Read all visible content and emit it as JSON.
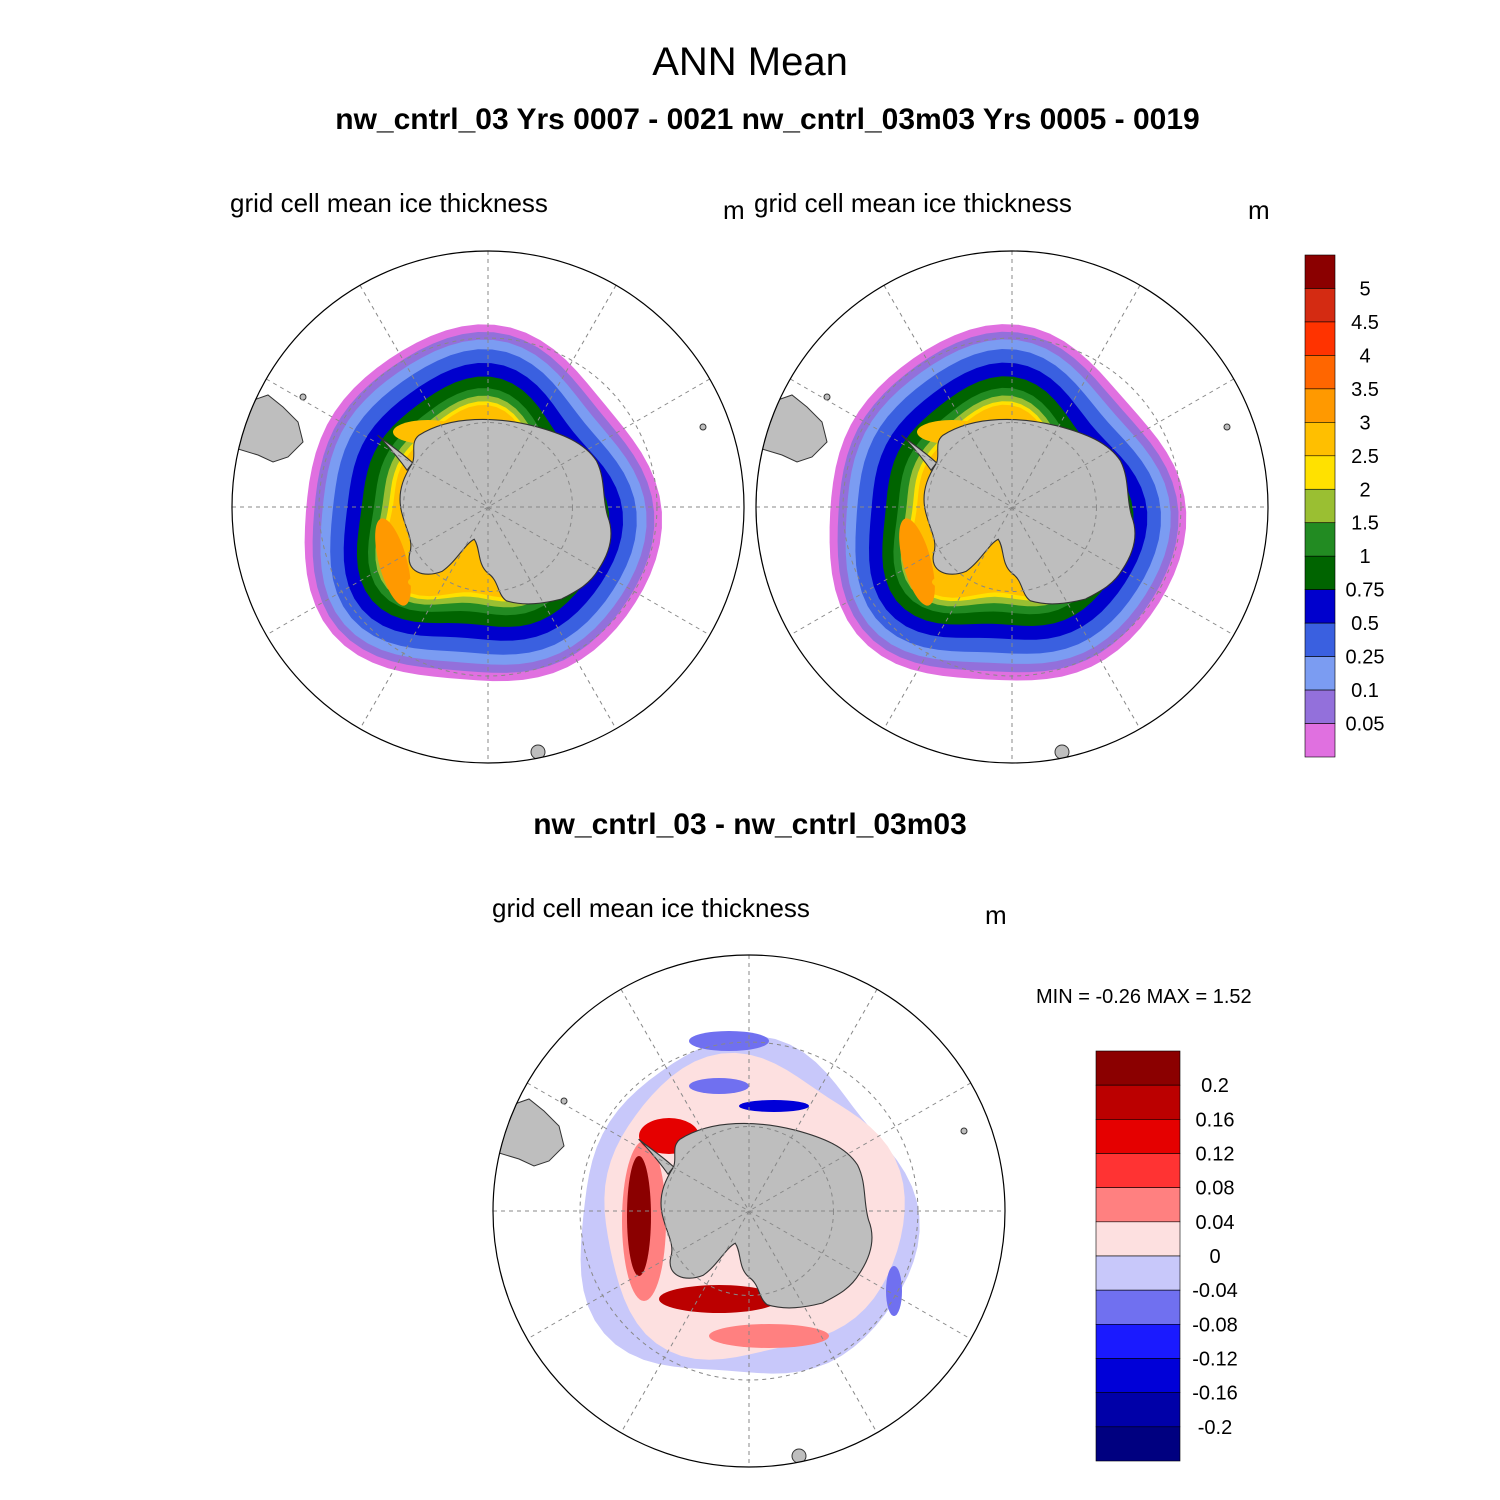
{
  "title": "ANN Mean",
  "subtitle": "nw_cntrl_03  Yrs 0007 - 0021   nw_cntrl_03m03  Yrs 0005 - 0019",
  "panels": [
    {
      "name": "grid cell mean ice thickness",
      "unit": "m"
    },
    {
      "name": "grid cell mean ice thickness",
      "unit": "m"
    }
  ],
  "diff": {
    "title": "nw_cntrl_03 - nw_cntrl_03m03",
    "name": "grid cell mean ice thickness",
    "unit": "m",
    "minmax": "MIN =  -0.26 MAX =   1.52"
  },
  "colorbar_main": {
    "labels": [
      "5",
      "4.5",
      "4",
      "3.5",
      "3",
      "2.5",
      "2",
      "1.5",
      "1",
      "0.75",
      "0.5",
      "0.25",
      "0.1",
      "0.05"
    ],
    "colors": [
      "#8b0000",
      "#d42b12",
      "#ff3300",
      "#ff6600",
      "#ff9900",
      "#ffbf00",
      "#ffe100",
      "#9abf32",
      "#228b22",
      "#006400",
      "#0000cd",
      "#3a60e0",
      "#7b9cf2",
      "#9370db",
      "#e070e0"
    ]
  },
  "colorbar_diff": {
    "labels": [
      "0.2",
      "0.16",
      "0.12",
      "0.08",
      "0.04",
      "0",
      "-0.04",
      "-0.08",
      "-0.12",
      "-0.16",
      "-0.2"
    ],
    "colors": [
      "#8b0000",
      "#bb0000",
      "#e50000",
      "#ff3333",
      "#ff8080",
      "#fde0e0",
      "#c8c8fa",
      "#7070f0",
      "#1a1aff",
      "#0000d8",
      "#0000a8",
      "#000080"
    ]
  },
  "colors": {
    "land": "#bebebe",
    "grid": "#888888"
  }
}
